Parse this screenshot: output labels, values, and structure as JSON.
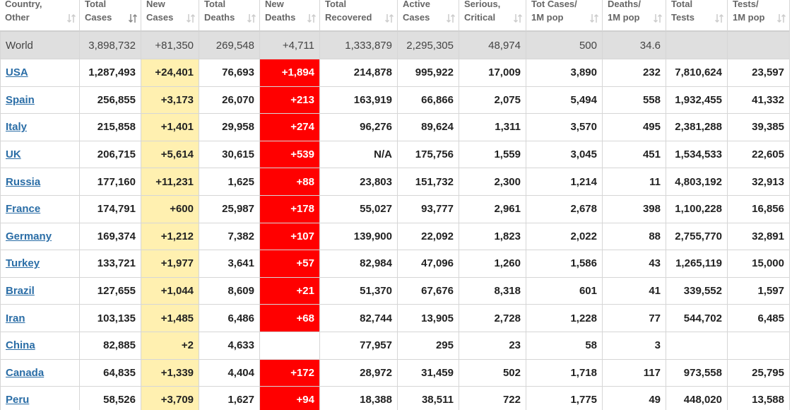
{
  "table": {
    "columns": [
      [
        "Country,",
        "Other"
      ],
      [
        "Total",
        "Cases"
      ],
      [
        "New",
        "Cases"
      ],
      [
        "Total",
        "Deaths"
      ],
      [
        "New",
        "Deaths"
      ],
      [
        "Total",
        "Recovered"
      ],
      [
        "Active",
        "Cases"
      ],
      [
        "Serious,",
        "Critical"
      ],
      [
        "Tot Cases/",
        "1M pop"
      ],
      [
        "Deaths/",
        "1M pop"
      ],
      [
        "Total",
        "Tests"
      ],
      [
        "Tests/",
        "1M pop"
      ]
    ],
    "world": [
      "World",
      "3,898,732",
      "+81,350",
      "269,548",
      "+4,711",
      "1,333,879",
      "2,295,305",
      "48,974",
      "500",
      "34.6",
      null,
      null
    ],
    "rows": [
      [
        "USA",
        "1,287,493",
        "+24,401",
        "76,693",
        "+1,894",
        "214,878",
        "995,922",
        "17,009",
        "3,890",
        "232",
        "7,810,624",
        "23,597"
      ],
      [
        "Spain",
        "256,855",
        "+3,173",
        "26,070",
        "+213",
        "163,919",
        "66,866",
        "2,075",
        "5,494",
        "558",
        "1,932,455",
        "41,332"
      ],
      [
        "Italy",
        "215,858",
        "+1,401",
        "29,958",
        "+274",
        "96,276",
        "89,624",
        "1,311",
        "3,570",
        "495",
        "2,381,288",
        "39,385"
      ],
      [
        "UK",
        "206,715",
        "+5,614",
        "30,615",
        "+539",
        "N/A",
        "175,756",
        "1,559",
        "3,045",
        "451",
        "1,534,533",
        "22,605"
      ],
      [
        "Russia",
        "177,160",
        "+11,231",
        "1,625",
        "+88",
        "23,803",
        "151,732",
        "2,300",
        "1,214",
        "11",
        "4,803,192",
        "32,913"
      ],
      [
        "France",
        "174,791",
        "+600",
        "25,987",
        "+178",
        "55,027",
        "93,777",
        "2,961",
        "2,678",
        "398",
        "1,100,228",
        "16,856"
      ],
      [
        "Germany",
        "169,374",
        "+1,212",
        "7,382",
        "+107",
        "139,900",
        "22,092",
        "1,823",
        "2,022",
        "88",
        "2,755,770",
        "32,891"
      ],
      [
        "Turkey",
        "133,721",
        "+1,977",
        "3,641",
        "+57",
        "82,984",
        "47,096",
        "1,260",
        "1,586",
        "43",
        "1,265,119",
        "15,000"
      ],
      [
        "Brazil",
        "127,655",
        "+1,044",
        "8,609",
        "+21",
        "51,370",
        "67,676",
        "8,318",
        "601",
        "41",
        "339,552",
        "1,597"
      ],
      [
        "Iran",
        "103,135",
        "+1,485",
        "6,486",
        "+68",
        "82,744",
        "13,905",
        "2,728",
        "1,228",
        "77",
        "544,702",
        "6,485"
      ],
      [
        "China",
        "82,885",
        "+2",
        "4,633",
        null,
        "77,957",
        "295",
        "23",
        "58",
        "3",
        null,
        null
      ],
      [
        "Canada",
        "64,835",
        "+1,339",
        "4,404",
        "+172",
        "28,972",
        "31,459",
        "502",
        "1,718",
        "117",
        "973,558",
        "25,795"
      ],
      [
        "Peru",
        "58,526",
        "+3,709",
        "1,627",
        "+94",
        "18,388",
        "38,511",
        "722",
        "1,775",
        "49",
        "448,020",
        "13,588"
      ]
    ]
  }
}
